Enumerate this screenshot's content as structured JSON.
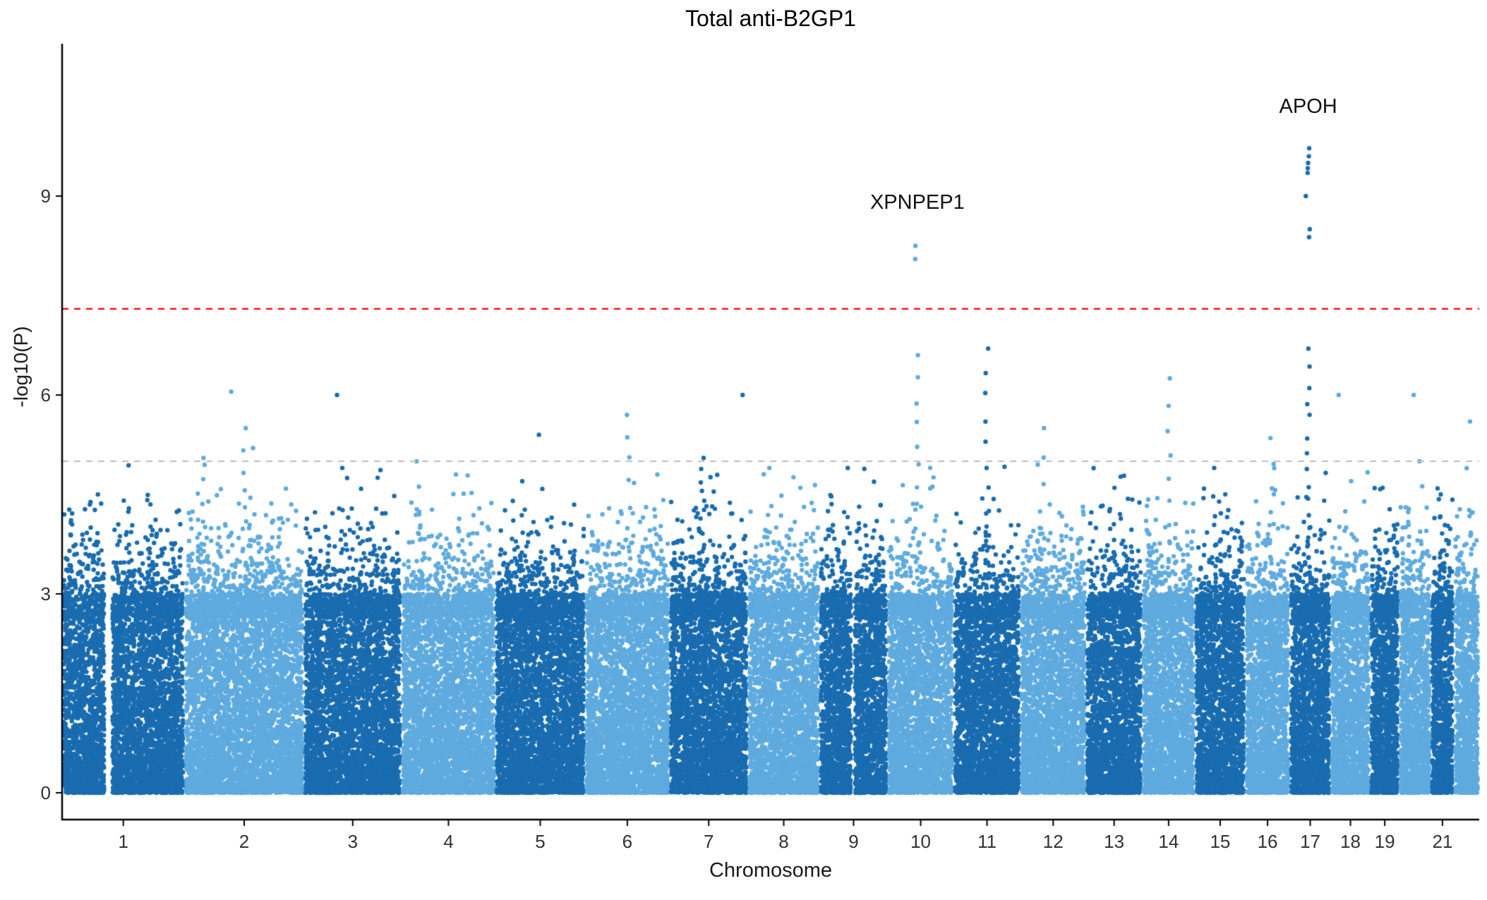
{
  "chart_data": {
    "type": "scatter",
    "variant": "manhattan",
    "title": "Total anti-B2GP1",
    "xlabel": "Chromosome",
    "ylabel": "-log10(P)",
    "ylim": [
      0,
      11.3
    ],
    "y_ticks": [
      0,
      3,
      6,
      9
    ],
    "grid": false,
    "legend": false,
    "colors": {
      "odd_chromosome": "#1A6CB0",
      "even_chromosome": "#5FABDF",
      "threshold_genomewide": "#FF0000",
      "threshold_suggestive": "#BFBFBF",
      "axis": "#000000",
      "tick_text": "#333333",
      "title_text": "#000000"
    },
    "thresholds": [
      {
        "name": "genome-wide-significance",
        "value": 7.3,
        "style": "dashed",
        "color": "#FF0000"
      },
      {
        "name": "suggestive-significance",
        "value": 5.0,
        "style": "dashed",
        "color": "#BFBFBF"
      }
    ],
    "chromosomes": [
      {
        "label": "1",
        "rel_size": 248,
        "show_label": true
      },
      {
        "label": "2",
        "rel_size": 242,
        "show_label": true
      },
      {
        "label": "3",
        "rel_size": 198,
        "show_label": true
      },
      {
        "label": "4",
        "rel_size": 190,
        "show_label": true
      },
      {
        "label": "5",
        "rel_size": 182,
        "show_label": true
      },
      {
        "label": "6",
        "rel_size": 171,
        "show_label": true
      },
      {
        "label": "7",
        "rel_size": 159,
        "show_label": true
      },
      {
        "label": "8",
        "rel_size": 145,
        "show_label": true
      },
      {
        "label": "9",
        "rel_size": 138,
        "show_label": true
      },
      {
        "label": "10",
        "rel_size": 134,
        "show_label": true
      },
      {
        "label": "11",
        "rel_size": 135,
        "show_label": true
      },
      {
        "label": "12",
        "rel_size": 133,
        "show_label": true
      },
      {
        "label": "13",
        "rel_size": 114,
        "show_label": true
      },
      {
        "label": "14",
        "rel_size": 107,
        "show_label": true
      },
      {
        "label": "15",
        "rel_size": 102,
        "show_label": true
      },
      {
        "label": "16",
        "rel_size": 90,
        "show_label": true
      },
      {
        "label": "17",
        "rel_size": 83,
        "show_label": true
      },
      {
        "label": "18",
        "rel_size": 80,
        "show_label": true
      },
      {
        "label": "19",
        "rel_size": 59,
        "show_label": true
      },
      {
        "label": "20",
        "rel_size": 64,
        "show_label": false
      },
      {
        "label": "21",
        "rel_size": 47,
        "show_label": true
      },
      {
        "label": "22",
        "rel_size": 51,
        "show_label": false
      }
    ],
    "gaps": [
      {
        "chr": 1,
        "from": 0.34,
        "to": 0.41
      },
      {
        "chr": 9,
        "from": 0.46,
        "to": 0.52
      }
    ],
    "peaks": [
      {
        "chr": 1,
        "pos": 0.3,
        "max": 4.5,
        "n": 3
      },
      {
        "chr": 1,
        "pos": 0.72,
        "max": 4.35,
        "n": 2
      },
      {
        "chr": 2,
        "pos": 0.16,
        "max": 5.05,
        "n": 7
      },
      {
        "chr": 2,
        "pos": 0.4,
        "max": 6.05,
        "n": 1
      },
      {
        "chr": 2,
        "pos": 0.5,
        "max": 5.5,
        "n": 9
      },
      {
        "chr": 2,
        "pos": 0.56,
        "max": 5.2,
        "n": 4
      },
      {
        "chr": 3,
        "pos": 0.33,
        "max": 6.0,
        "n": 1
      },
      {
        "chr": 3,
        "pos": 0.38,
        "max": 4.9,
        "n": 4
      },
      {
        "chr": 4,
        "pos": 0.18,
        "max": 5.0,
        "n": 6
      },
      {
        "chr": 4,
        "pos": 0.6,
        "max": 4.8,
        "n": 3
      },
      {
        "chr": 5,
        "pos": 0.47,
        "max": 5.4,
        "n": 1
      },
      {
        "chr": 5,
        "pos": 0.3,
        "max": 4.7,
        "n": 3
      },
      {
        "chr": 6,
        "pos": 0.52,
        "max": 5.7,
        "n": 9
      },
      {
        "chr": 6,
        "pos": 0.85,
        "max": 4.8,
        "n": 3
      },
      {
        "chr": 7,
        "pos": 0.42,
        "max": 5.05,
        "n": 14
      },
      {
        "chr": 7,
        "pos": 0.95,
        "max": 6.0,
        "n": 1
      },
      {
        "chr": 8,
        "pos": 0.3,
        "max": 4.9,
        "n": 4
      },
      {
        "chr": 8,
        "pos": 0.75,
        "max": 4.6,
        "n": 2
      },
      {
        "chr": 9,
        "pos": 0.4,
        "max": 4.9,
        "n": 3
      },
      {
        "chr": 10,
        "pos": 0.45,
        "max": 6.6,
        "n": 12
      },
      {
        "chr": 11,
        "pos": 0.5,
        "max": 6.7,
        "n": 12
      },
      {
        "chr": 12,
        "pos": 0.33,
        "max": 5.5,
        "n": 7
      },
      {
        "chr": 13,
        "pos": 0.5,
        "max": 4.6,
        "n": 4
      },
      {
        "chr": 14,
        "pos": 0.5,
        "max": 6.25,
        "n": 10
      },
      {
        "chr": 15,
        "pos": 0.4,
        "max": 4.9,
        "n": 3
      },
      {
        "chr": 16,
        "pos": 0.6,
        "max": 5.35,
        "n": 7
      },
      {
        "chr": 17,
        "pos": 0.45,
        "max": 6.7,
        "n": 16
      },
      {
        "chr": 18,
        "pos": 0.2,
        "max": 6.0,
        "n": 1
      },
      {
        "chr": 18,
        "pos": 0.55,
        "max": 4.7,
        "n": 3
      },
      {
        "chr": 19,
        "pos": 0.5,
        "max": 4.6,
        "n": 3
      },
      {
        "chr": 20,
        "pos": 0.4,
        "max": 6.0,
        "n": 1
      },
      {
        "chr": 20,
        "pos": 0.6,
        "max": 5.0,
        "n": 2
      },
      {
        "chr": 21,
        "pos": 0.5,
        "max": 4.5,
        "n": 2
      },
      {
        "chr": 22,
        "pos": 0.55,
        "max": 5.6,
        "n": 5
      }
    ],
    "annotations": [
      {
        "label": "XPNPEP1",
        "chr": 10,
        "pos": 0.45,
        "points": [
          8.25,
          8.05
        ],
        "label_y": 8.9
      },
      {
        "label": "APOH",
        "chr": 17,
        "pos": 0.45,
        "points": [
          9.72,
          9.6,
          9.5,
          9.42,
          9.35,
          9.0,
          8.5,
          8.38
        ],
        "label_y": 10.35
      }
    ]
  }
}
